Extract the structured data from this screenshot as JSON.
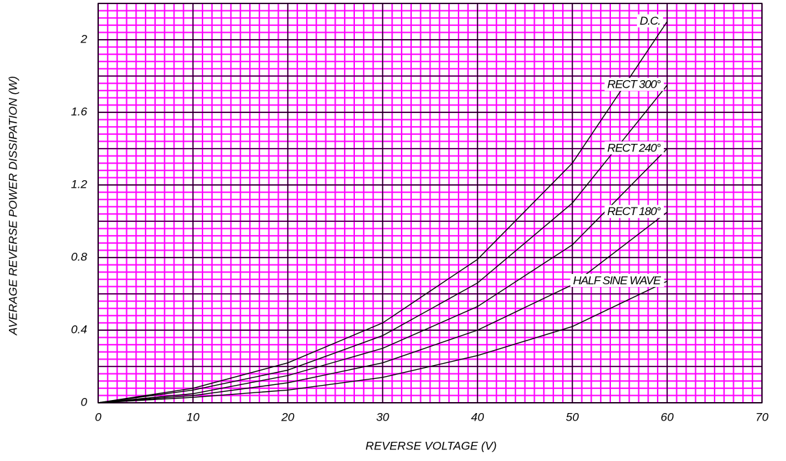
{
  "chart_data": {
    "type": "line",
    "x_label": "REVERSE VOLTAGE (V)",
    "y_label": "AVERAGE REVERSE POWER DISSIPATION (W)",
    "x": [
      0,
      10,
      20,
      30,
      40,
      50,
      60
    ],
    "series": [
      {
        "name": "D.C.",
        "color": "#000000",
        "values": [
          0,
          0.08,
          0.22,
          0.44,
          0.79,
          1.32,
          2.1
        ]
      },
      {
        "name": "RECT 300°",
        "color": "#000000",
        "values": [
          0,
          0.07,
          0.18,
          0.37,
          0.66,
          1.1,
          1.75
        ]
      },
      {
        "name": "RECT 240°",
        "color": "#000000",
        "values": [
          0,
          0.05,
          0.15,
          0.3,
          0.53,
          0.87,
          1.4
        ]
      },
      {
        "name": "RECT 180°",
        "color": "#000000",
        "values": [
          0,
          0.04,
          0.11,
          0.22,
          0.4,
          0.65,
          1.05
        ]
      },
      {
        "name": "HALF SINE WAVE",
        "color": "#000000",
        "values": [
          0,
          0.03,
          0.07,
          0.14,
          0.26,
          0.42,
          0.67
        ]
      }
    ],
    "xlim": [
      0,
      70
    ],
    "xticks": [
      0,
      10,
      20,
      30,
      40,
      50,
      60,
      70
    ],
    "ylim": [
      0,
      2.2
    ],
    "yticks": [
      0,
      0.4,
      0.8,
      1.2,
      1.6,
      2.0
    ],
    "grid": true,
    "grid_color": "#ff00ff"
  }
}
